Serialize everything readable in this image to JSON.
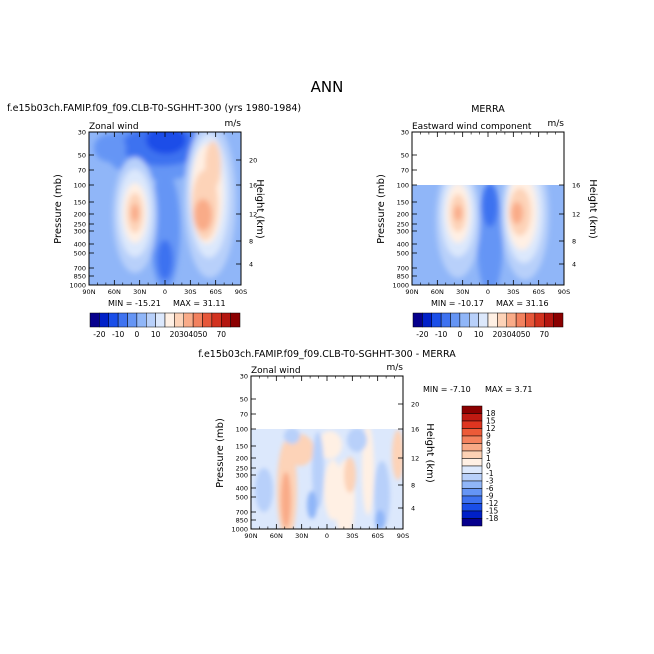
{
  "page": {
    "title": "ANN"
  },
  "chart_data": [
    {
      "type": "heatmap",
      "panel": "model",
      "title": "f.e15b03ch.FAMIP.f09_f09.CLB-T0-SGHHT-300 (yrs 1980-1984)",
      "variable": "Zonal wind",
      "units": "m/s",
      "xlabel": "",
      "ylabel": "Pressure (mb)",
      "ylabel_right": "Height (km)",
      "x_ticks": [
        "90N",
        "60N",
        "30N",
        "0",
        "30S",
        "60S",
        "90S"
      ],
      "y_ticks": [
        "30",
        "50",
        "70",
        "100",
        "150",
        "200",
        "250",
        "300",
        "400",
        "500",
        "700",
        "850",
        "1000"
      ],
      "height_ticks": [
        "4",
        "8",
        "12",
        "16",
        "20"
      ],
      "ylim": [
        1000,
        30
      ],
      "data_top_pressure": 30,
      "min_label": "MIN = -15.21",
      "max_label": "MAX =  31.11",
      "min": -15.21,
      "max": 31.11,
      "features": [
        {
          "lat": 39,
          "p": 200,
          "value": 31,
          "kind": "jet"
        },
        {
          "lat": -40,
          "p": 210,
          "value": 29,
          "kind": "jet"
        },
        {
          "lat": 5,
          "p": 50,
          "value": -15,
          "kind": "easterly"
        }
      ]
    },
    {
      "type": "heatmap",
      "panel": "obs",
      "title": "MERRA",
      "variable": "Eastward wind component",
      "units": "m/s",
      "ylabel": "Pressure (mb)",
      "ylabel_right": "Height (km)",
      "x_ticks": [
        "90N",
        "60N",
        "30N",
        "0",
        "30S",
        "60S",
        "90S"
      ],
      "y_ticks": [
        "30",
        "50",
        "70",
        "100",
        "150",
        "200",
        "250",
        "300",
        "400",
        "500",
        "700",
        "850",
        "1000"
      ],
      "height_ticks": [
        "4",
        "8",
        "12",
        "16"
      ],
      "ylim": [
        1000,
        30
      ],
      "data_top_pressure": 100,
      "min_label": "MIN = -10.17",
      "max_label": "MAX =  31.16",
      "min": -10.17,
      "max": 31.16
    },
    {
      "type": "heatmap",
      "panel": "difference",
      "title": "f.e15b03ch.FAMIP.f09_f09.CLB-T0-SGHHT-300 - MERRA",
      "variable": "Zonal wind",
      "units": "m/s",
      "ylabel": "Pressure (mb)",
      "ylabel_right": "Height (km)",
      "x_ticks": [
        "90N",
        "60N",
        "30N",
        "0",
        "30S",
        "60S",
        "90S"
      ],
      "y_ticks": [
        "30",
        "50",
        "70",
        "100",
        "150",
        "200",
        "250",
        "300",
        "400",
        "500",
        "700",
        "850",
        "1000"
      ],
      "height_ticks": [
        "4",
        "8",
        "12",
        "16",
        "20"
      ],
      "ylim": [
        1000,
        30
      ],
      "data_top_pressure": 100,
      "min_label": "MIN =  -7.10",
      "max_label": "MAX =   3.71",
      "min": -7.1,
      "max": 3.71
    }
  ],
  "colorbars": {
    "full": {
      "labels": [
        "-20",
        "-10",
        "0",
        "10",
        "20",
        "30",
        "40",
        "50",
        "70"
      ],
      "colors": [
        "#06008d",
        "#0020c8",
        "#1a4ee8",
        "#3e72f0",
        "#6595f5",
        "#90b6f8",
        "#b8d0fa",
        "#dce8fc",
        "#fff0e4",
        "#fdd3b8",
        "#f9ab88",
        "#f2815e",
        "#e6573a",
        "#d2321f",
        "#b41610",
        "#8b0000"
      ]
    },
    "diff": {
      "labels": [
        "18",
        "15",
        "12",
        "9",
        "6",
        "3",
        "1",
        "0",
        "-1",
        "-3",
        "-6",
        "-9",
        "-12",
        "-15",
        "-18"
      ],
      "colors": [
        "#8b0000",
        "#bf1a12",
        "#de3520",
        "#ec5a38",
        "#f4825e",
        "#f8a986",
        "#fcd1b4",
        "#fff0e4",
        "#dce8fc",
        "#b8d0fa",
        "#90b6f8",
        "#6595f5",
        "#3e72f0",
        "#1a4ee8",
        "#0020c8",
        "#06008d"
      ]
    }
  }
}
